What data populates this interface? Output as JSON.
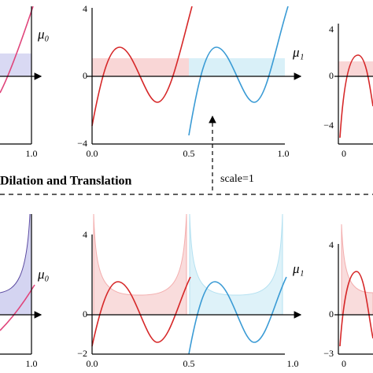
{
  "top": {
    "left": {
      "label": "μ₀",
      "xticks": [
        "1.0"
      ]
    },
    "center": {
      "label": "μ₁",
      "yticks": [
        "4",
        "0",
        "−4"
      ],
      "xticks": [
        "0.0",
        "0.5",
        "1.0"
      ]
    },
    "right": {
      "yticks": [
        "4",
        "0",
        "−4"
      ],
      "xticks": [
        "0"
      ]
    }
  },
  "middle": {
    "title": "Dilation and Translation",
    "arrow_label": "scale=1"
  },
  "bottom": {
    "left": {
      "label": "μ₀",
      "xticks": [
        "1.0"
      ]
    },
    "center": {
      "label": "μ₁",
      "yticks": [
        "4",
        "0",
        "−2"
      ],
      "xticks": [
        "0.0",
        "0.5",
        "1.0"
      ]
    },
    "right": {
      "yticks": [
        "4",
        "0",
        "−3"
      ],
      "xticks": [
        "0"
      ]
    }
  }
}
